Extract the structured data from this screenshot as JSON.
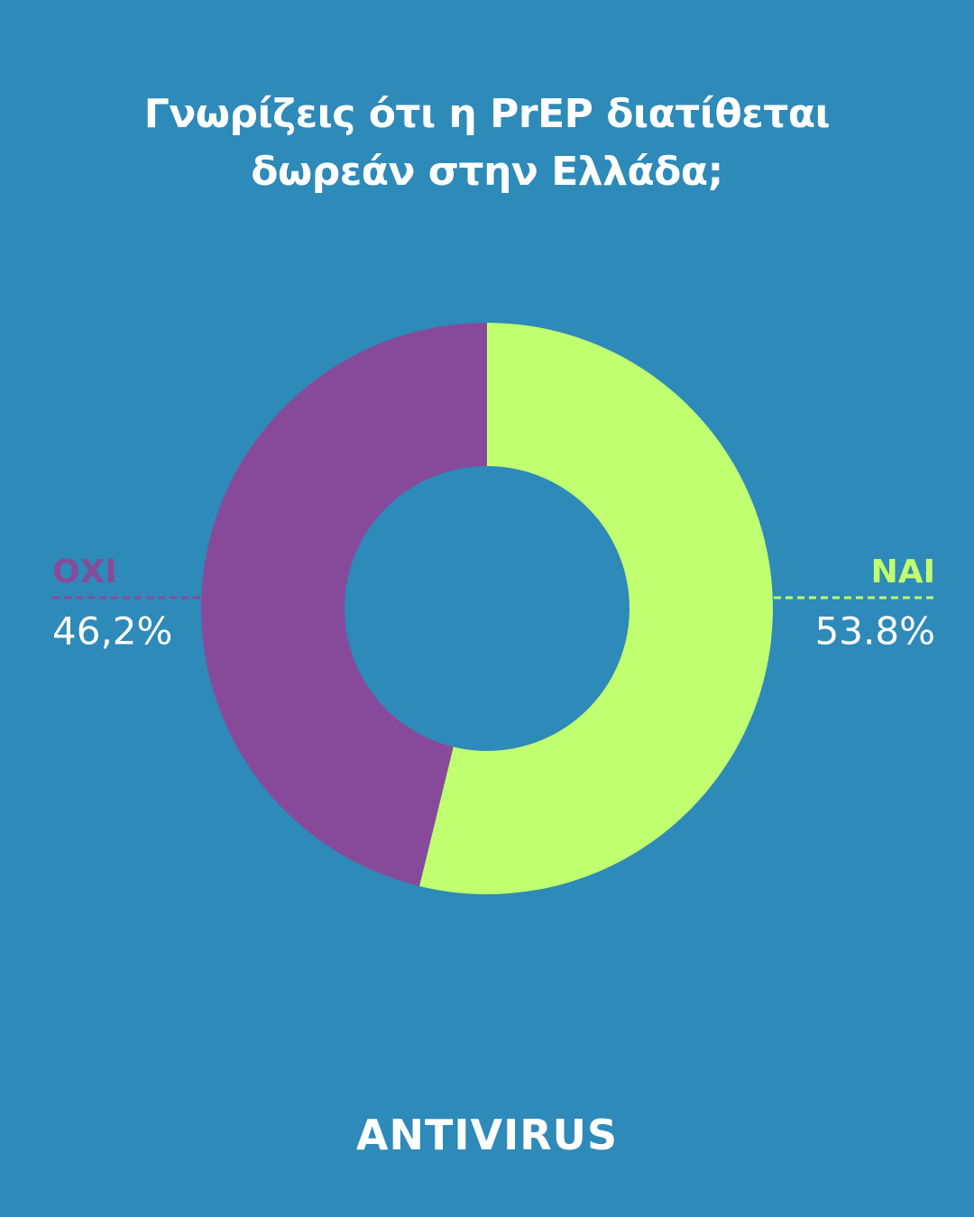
{
  "chart_data": {
    "type": "donut",
    "title": "Γνωρίζεις ότι η PrEP διατίθεται δωρεάν στην Ελλάδα;",
    "categories": [
      "NAI",
      "ΟΧΙ"
    ],
    "values": [
      53.8,
      46.2
    ],
    "value_labels": [
      "53.8%",
      "46,2%"
    ],
    "colors": [
      "#c0ff70",
      "#874a9a"
    ]
  },
  "footer": "ANTIVIRUS"
}
